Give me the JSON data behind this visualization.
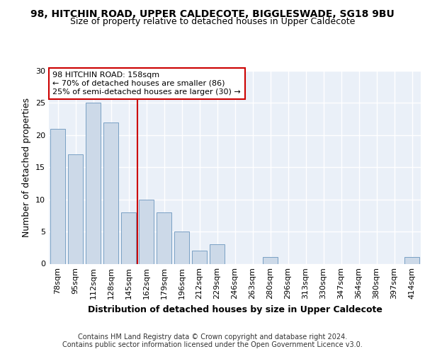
{
  "title": "98, HITCHIN ROAD, UPPER CALDECOTE, BIGGLESWADE, SG18 9BU",
  "subtitle": "Size of property relative to detached houses in Upper Caldecote",
  "xlabel": "Distribution of detached houses by size in Upper Caldecote",
  "ylabel": "Number of detached properties",
  "categories": [
    "78sqm",
    "95sqm",
    "112sqm",
    "128sqm",
    "145sqm",
    "162sqm",
    "179sqm",
    "196sqm",
    "212sqm",
    "229sqm",
    "246sqm",
    "263sqm",
    "280sqm",
    "296sqm",
    "313sqm",
    "330sqm",
    "347sqm",
    "364sqm",
    "380sqm",
    "397sqm",
    "414sqm"
  ],
  "values": [
    21,
    17,
    25,
    22,
    8,
    10,
    8,
    5,
    2,
    3,
    0,
    0,
    1,
    0,
    0,
    0,
    0,
    0,
    0,
    0,
    1
  ],
  "bar_color": "#ccd9e8",
  "bar_edge_color": "#7aa0c4",
  "ref_line_x": 4.5,
  "ref_line_color": "#cc0000",
  "annotation_box_text": "98 HITCHIN ROAD: 158sqm\n← 70% of detached houses are smaller (86)\n25% of semi-detached houses are larger (30) →",
  "annotation_box_color": "#cc0000",
  "ylim": [
    0,
    30
  ],
  "yticks": [
    0,
    5,
    10,
    15,
    20,
    25,
    30
  ],
  "background_color": "#eaf0f8",
  "grid_color": "#ffffff",
  "footer": "Contains HM Land Registry data © Crown copyright and database right 2024.\nContains public sector information licensed under the Open Government Licence v3.0.",
  "title_fontsize": 10,
  "subtitle_fontsize": 9,
  "axis_label_fontsize": 9,
  "tick_fontsize": 8,
  "annotation_fontsize": 8,
  "footer_fontsize": 7
}
